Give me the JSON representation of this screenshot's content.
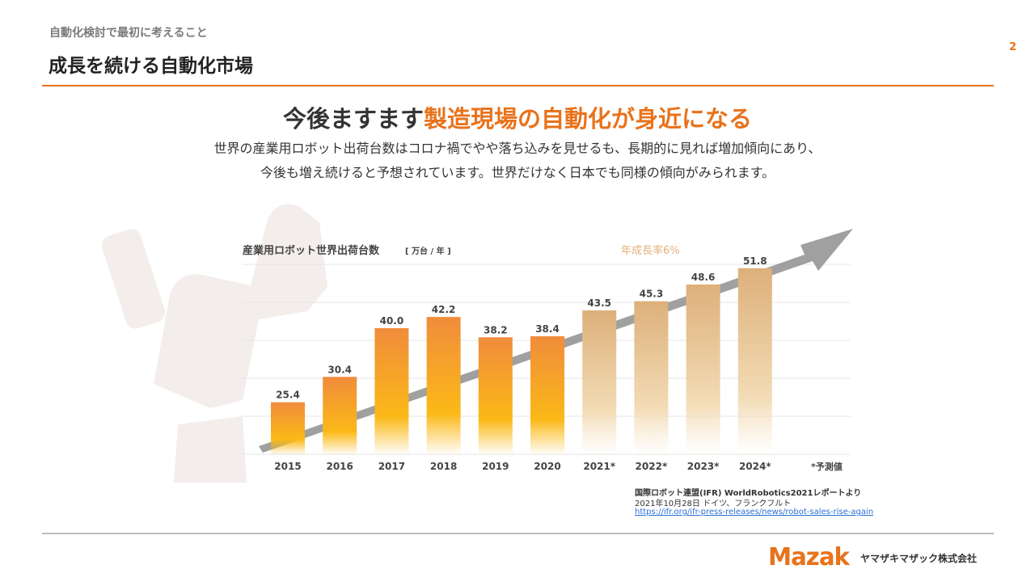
{
  "header": {
    "kicker": "自動化検討で最初に考えること",
    "title": "成長を続ける自動化市場",
    "page_number": "2"
  },
  "headline": {
    "lead": "今後ますます",
    "highlight": "製造現場の自動化が身近になる"
  },
  "body": {
    "line1": "世界の産業用ロボット出荷台数はコロナ禍でやや落ち込みを見せるも、長期的に見れば増加傾向にあり、",
    "line2": "今後も増え続けると予想されています。世界だけなく日本でも同様の傾向がみられます。"
  },
  "chart_data": {
    "type": "bar",
    "title": "産業用ロボット世界出荷台数",
    "unit_label": "[ 万台 / 年 ]",
    "categories": [
      "2015",
      "2016",
      "2017",
      "2018",
      "2019",
      "2020",
      "2021*",
      "2022*",
      "2023*",
      "2024*"
    ],
    "values": [
      25.4,
      30.4,
      40.0,
      42.2,
      38.2,
      38.4,
      43.5,
      45.3,
      48.6,
      51.8
    ],
    "value_labels": [
      "25.4",
      "30.4",
      "40.0",
      "42.2",
      "38.2",
      "38.4",
      "43.5",
      "45.3",
      "48.6",
      "51.8"
    ],
    "forecast_from_index": 6,
    "ylim": [
      15,
      54
    ],
    "growth_annotation": "年成長率6%",
    "forecast_note": "*予測値",
    "grid": true,
    "colors": {
      "actual": "#f08c3c",
      "actual_bottom": "#fbb917",
      "forecast": "#ddb07a",
      "forecast_bottom": "#f3dcb6",
      "trend_arrow": "#8f8f8f",
      "annotation": "#e3b27a"
    }
  },
  "source": {
    "line1": "国際ロボット連盟(IFR) WorldRobotics2021レポートより",
    "line2": "2021年10月28日 ドイツ、フランクフルト",
    "link": "https://ifr.org/ifr-press-releases/news/robot-sales-rise-again"
  },
  "footer": {
    "logo_text": "Mazak",
    "company": "ヤマザキマザック株式会社",
    "logo_color": "#e8731c"
  }
}
